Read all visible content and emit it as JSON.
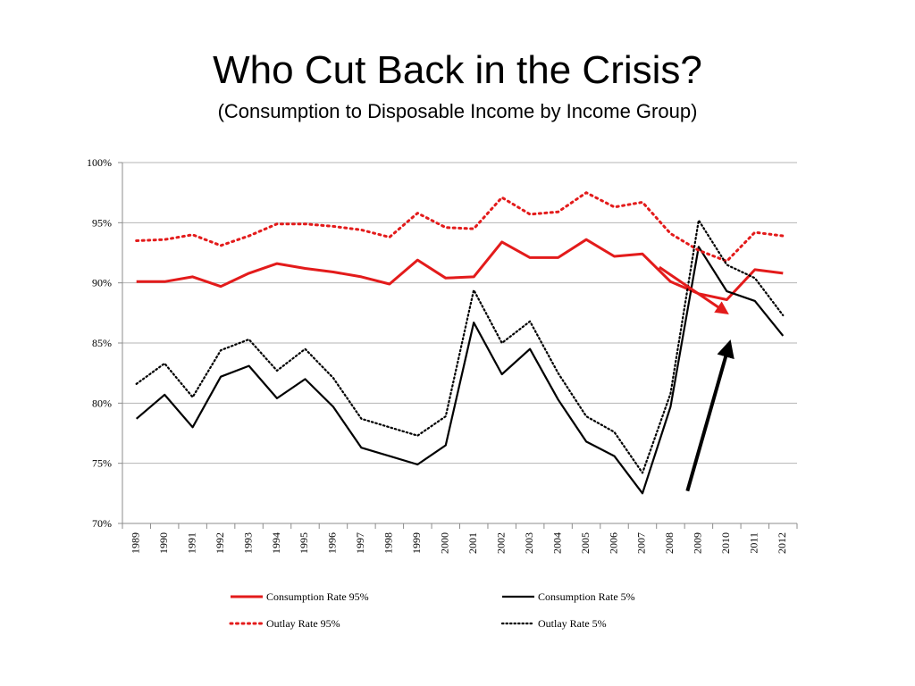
{
  "chart_data": {
    "type": "line",
    "title": "Who Cut Back in the Crisis?",
    "subtitle": "(Consumption to Disposable Income by Income Group)",
    "xlabel": "",
    "ylabel": "",
    "x": [
      "1989",
      "1990",
      "1991",
      "1992",
      "1993",
      "1994",
      "1995",
      "1996",
      "1997",
      "1998",
      "1999",
      "2000",
      "2001",
      "2002",
      "2003",
      "2004",
      "2005",
      "2006",
      "2007",
      "2008",
      "2009",
      "2010",
      "2011",
      "2012"
    ],
    "ylim": [
      70,
      100
    ],
    "yticks": [
      70,
      75,
      80,
      85,
      90,
      95,
      100
    ],
    "ytick_labels": [
      "70%",
      "75%",
      "80%",
      "85%",
      "90%",
      "95%",
      "100%"
    ],
    "grid": true,
    "legend_position": "bottom",
    "series": [
      {
        "name": "Consumption Rate 95%",
        "color": "#e31b1b",
        "style": "solid",
        "values": [
          90.1,
          90.1,
          90.5,
          89.7,
          90.8,
          91.6,
          91.2,
          90.9,
          90.5,
          89.9,
          91.9,
          90.4,
          90.5,
          93.4,
          92.1,
          92.1,
          93.6,
          92.2,
          92.4,
          90.1,
          89.1,
          88.6,
          91.1,
          90.8
        ]
      },
      {
        "name": "Consumption Rate 5%",
        "color": "#000000",
        "style": "solid",
        "values": [
          78.7,
          80.7,
          78.0,
          82.2,
          83.1,
          80.4,
          82.0,
          79.7,
          76.3,
          75.6,
          74.9,
          76.5,
          86.7,
          82.4,
          84.5,
          80.3,
          76.8,
          75.6,
          72.5,
          79.7,
          93.0,
          89.3,
          88.5,
          85.6
        ]
      },
      {
        "name": "Outlay Rate 95%",
        "color": "#e31b1b",
        "style": "dotted",
        "values": [
          93.5,
          93.6,
          94.0,
          93.1,
          93.9,
          94.9,
          94.9,
          94.7,
          94.4,
          93.8,
          95.8,
          94.6,
          94.5,
          97.1,
          95.7,
          95.9,
          97.5,
          96.3,
          96.7,
          94.1,
          92.7,
          91.8,
          94.2,
          93.9
        ]
      },
      {
        "name": "Outlay Rate 5%",
        "color": "#000000",
        "style": "dotted",
        "values": [
          81.6,
          83.3,
          80.5,
          84.4,
          85.3,
          82.7,
          84.5,
          82.1,
          78.7,
          78.0,
          77.3,
          78.9,
          89.4,
          85.0,
          86.8,
          82.5,
          78.9,
          77.6,
          74.2,
          80.8,
          95.2,
          91.5,
          90.4,
          87.3
        ]
      }
    ],
    "annotations": [
      {
        "type": "arrow",
        "color": "#e31b1b",
        "from": {
          "x": "2007.6",
          "y": 91.3
        },
        "to": {
          "x": "2010.0",
          "y": 87.5
        }
      },
      {
        "type": "arrow",
        "color": "#000000",
        "from": {
          "x": "2008.6",
          "y": 72.7
        },
        "to": {
          "x": "2010.1",
          "y": 85.0
        }
      }
    ]
  }
}
